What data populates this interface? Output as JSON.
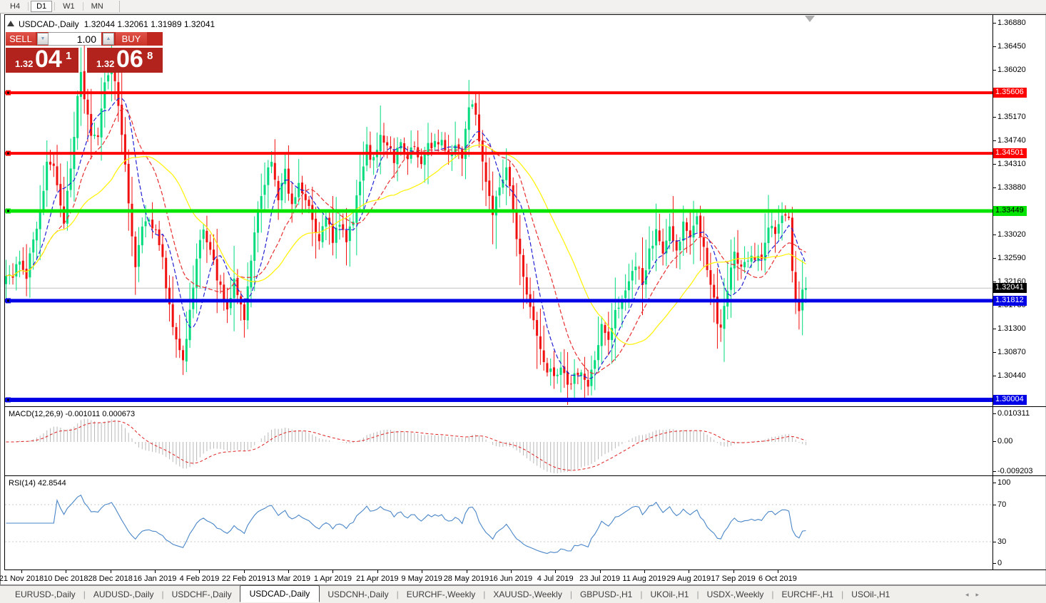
{
  "toolbar": {
    "timeframes": [
      {
        "label": "H4",
        "active": false
      },
      {
        "label": "D1",
        "active": true
      },
      {
        "label": "W1",
        "active": false
      },
      {
        "label": "MN",
        "active": false
      }
    ]
  },
  "chart": {
    "collapse_icon": "▲",
    "title": {
      "symbol": "USDCAD-,Daily",
      "quotes": "1.32044 1.32061 1.31989 1.32041"
    },
    "trade_panel": {
      "sell_label": "SELL",
      "buy_label": "BUY",
      "volume": "1.00",
      "spinner_down_icon": "▼",
      "spinner_up_icon": "▲",
      "sell_price": {
        "base": "1.32",
        "big": "04",
        "sup": "1"
      },
      "buy_price": {
        "base": "1.32",
        "big": "06",
        "sup": "8"
      }
    }
  },
  "indicators": {
    "macd": {
      "name": "MACD(12,26,9)",
      "v1": "-0.001011",
      "v2": "0.000673"
    },
    "rsi": {
      "text": "RSI(14) 42.8544"
    }
  },
  "tabs": {
    "items": [
      {
        "label": "EURUSD-,Daily",
        "active": false
      },
      {
        "label": "AUDUSD-,Daily",
        "active": false
      },
      {
        "label": "USDCHF-,Daily",
        "active": false
      },
      {
        "label": "USDCAD-,Daily",
        "active": true
      },
      {
        "label": "USDCNH-,Daily",
        "active": false
      },
      {
        "label": "EURCHF-,Weekly",
        "active": false
      },
      {
        "label": "XAUUSD-,Weekly",
        "active": false
      },
      {
        "label": "GBPUSD-,H1",
        "active": false
      },
      {
        "label": "UKOil-,H1",
        "active": false
      },
      {
        "label": "USDX-,Weekly",
        "active": false
      },
      {
        "label": "EURCHF-,H1",
        "active": false
      },
      {
        "label": "USOil-,H1",
        "active": false
      }
    ],
    "nav_left": "◂",
    "nav_right": "▸"
  },
  "chart_data": {
    "type": "candlestick",
    "symbol": "USDCAD-",
    "timeframe": "Daily",
    "ohlc_last": {
      "open": 1.32044,
      "high": 1.32061,
      "low": 1.31989,
      "close": 1.32041
    },
    "current_price": 1.32041,
    "candles_count": 236,
    "candle_colors": {
      "bull": "#00DC7D",
      "bear": "#F01010"
    },
    "y_tick_labels": [
      "1.36880",
      "1.36450",
      "1.36020",
      "1.35170",
      "1.34740",
      "1.34310",
      "1.33880",
      "1.33020",
      "1.32590",
      "1.32160",
      "1.31730",
      "1.31300",
      "1.30870",
      "1.30440"
    ],
    "y_badges": [
      {
        "label": "1.35606",
        "price": 1.35606,
        "bg": "#FF0000",
        "fg": "#FFFFFF"
      },
      {
        "label": "1.34501",
        "price": 1.34501,
        "bg": "#FF0000",
        "fg": "#FFFFFF"
      },
      {
        "label": "1.33449",
        "price": 1.33449,
        "bg": "#00E400",
        "fg": "#000000"
      },
      {
        "label": "1.32041",
        "price": 1.32041,
        "bg": "#000000",
        "fg": "#FFFFFF"
      },
      {
        "label": "1.31812",
        "price": 1.31812,
        "bg": "#0000E6",
        "fg": "#FFFFFF"
      },
      {
        "label": "1.30004",
        "price": 1.30004,
        "bg": "#0000E6",
        "fg": "#FFFFFF"
      }
    ],
    "hlines": [
      {
        "price": 1.35606,
        "color": "#FF0000",
        "width": 4
      },
      {
        "price": 1.34501,
        "color": "#FF0000",
        "width": 4
      },
      {
        "price": 1.33449,
        "color": "#00E400",
        "width": 5
      },
      {
        "price": 1.31812,
        "color": "#0000E6",
        "width": 5
      },
      {
        "price": 1.30004,
        "color": "#0000E6",
        "width": 6
      }
    ],
    "price_line": {
      "price": 1.32041,
      "color": "#C0C0C0"
    },
    "moving_averages": [
      {
        "period": 8,
        "color": "#2222D6",
        "style": "dashed"
      },
      {
        "period": 16,
        "color": "#E83030",
        "style": "dashed"
      },
      {
        "period": 32,
        "color": "#FFF200",
        "style": "solid"
      }
    ],
    "x_tick_labels": [
      "21 Nov 2018",
      "10 Dec 2018",
      "28 Dec 2018",
      "16 Jan 2019",
      "4 Feb 2019",
      "22 Feb 2019",
      "13 Mar 2019",
      "1 Apr 2019",
      "21 Apr 2019",
      "9 May 2019",
      "28 May 2019",
      "16 Jun 2019",
      "4 Jul 2019",
      "23 Jul 2019",
      "11 Aug 2019",
      "29 Aug 2019",
      "17 Sep 2019",
      "6 Oct 2019"
    ],
    "macd": {
      "fast": 12,
      "slow": 26,
      "signal": 9,
      "value_main": "-0.001011",
      "value_signal": "0.000673",
      "y_axis": [
        "0.010311",
        "0.00",
        "-0.009203"
      ],
      "histogram_color": "#B8B8B8",
      "signal_color": "#E02020"
    },
    "rsi": {
      "period": 14,
      "value": 42.8544,
      "levels": [
        70,
        30
      ],
      "y_axis": [
        "100",
        "70",
        "30",
        "0"
      ],
      "color": "#4A86C8"
    },
    "close_keypoints": [
      [
        0,
        1.3235
      ],
      [
        2,
        1.3215
      ],
      [
        4,
        1.3262
      ],
      [
        6,
        1.3228
      ],
      [
        8,
        1.3295
      ],
      [
        10,
        1.3345
      ],
      [
        12,
        1.3425
      ],
      [
        14,
        1.3432
      ],
      [
        16,
        1.3355
      ],
      [
        17,
        1.333
      ],
      [
        19,
        1.3415
      ],
      [
        21,
        1.3545
      ],
      [
        22,
        1.359
      ],
      [
        24,
        1.3518
      ],
      [
        25,
        1.3488
      ],
      [
        27,
        1.3478
      ],
      [
        29,
        1.357
      ],
      [
        31,
        1.3622
      ],
      [
        33,
        1.354
      ],
      [
        35,
        1.342
      ],
      [
        37,
        1.33
      ],
      [
        38,
        1.3252
      ],
      [
        40,
        1.3308
      ],
      [
        42,
        1.3325
      ],
      [
        44,
        1.3318
      ],
      [
        46,
        1.3255
      ],
      [
        48,
        1.317
      ],
      [
        50,
        1.311
      ],
      [
        52,
        1.3072
      ],
      [
        54,
        1.316
      ],
      [
        56,
        1.3258
      ],
      [
        58,
        1.3312
      ],
      [
        60,
        1.3278
      ],
      [
        62,
        1.3225
      ],
      [
        64,
        1.3178
      ],
      [
        65,
        1.3162
      ],
      [
        67,
        1.3212
      ],
      [
        69,
        1.3168
      ],
      [
        70,
        1.3152
      ],
      [
        72,
        1.3252
      ],
      [
        74,
        1.334
      ],
      [
        76,
        1.3402
      ],
      [
        78,
        1.344
      ],
      [
        80,
        1.3372
      ],
      [
        82,
        1.3412
      ],
      [
        84,
        1.3348
      ],
      [
        86,
        1.3402
      ],
      [
        88,
        1.3362
      ],
      [
        90,
        1.3328
      ],
      [
        92,
        1.3285
      ],
      [
        94,
        1.3338
      ],
      [
        96,
        1.3288
      ],
      [
        98,
        1.3322
      ],
      [
        100,
        1.3285
      ],
      [
        102,
        1.3335
      ],
      [
        104,
        1.3395
      ],
      [
        106,
        1.3458
      ],
      [
        108,
        1.3435
      ],
      [
        110,
        1.3488
      ],
      [
        112,
        1.3468
      ],
      [
        114,
        1.3438
      ],
      [
        116,
        1.3472
      ],
      [
        118,
        1.3442
      ],
      [
        120,
        1.3462
      ],
      [
        122,
        1.3428
      ],
      [
        124,
        1.3468
      ],
      [
        126,
        1.3465
      ],
      [
        128,
        1.3472
      ],
      [
        130,
        1.3438
      ],
      [
        132,
        1.3468
      ],
      [
        134,
        1.3448
      ],
      [
        136,
        1.3532
      ],
      [
        137,
        1.3548
      ],
      [
        139,
        1.3478
      ],
      [
        141,
        1.3402
      ],
      [
        143,
        1.3332
      ],
      [
        145,
        1.3392
      ],
      [
        147,
        1.3428
      ],
      [
        149,
        1.3345
      ],
      [
        151,
        1.3262
      ],
      [
        153,
        1.3198
      ],
      [
        155,
        1.3142
      ],
      [
        157,
        1.3088
      ],
      [
        159,
        1.3058
      ],
      [
        161,
        1.3038
      ],
      [
        163,
        1.3068
      ],
      [
        165,
        1.3035
      ],
      [
        167,
        1.3042
      ],
      [
        169,
        1.3048
      ],
      [
        171,
        1.3022
      ],
      [
        173,
        1.3078
      ],
      [
        175,
        1.3135
      ],
      [
        177,
        1.3102
      ],
      [
        179,
        1.3158
      ],
      [
        181,
        1.3188
      ],
      [
        183,
        1.3222
      ],
      [
        185,
        1.3252
      ],
      [
        187,
        1.3212
      ],
      [
        189,
        1.3268
      ],
      [
        191,
        1.3312
      ],
      [
        193,
        1.3262
      ],
      [
        195,
        1.3315
      ],
      [
        197,
        1.3272
      ],
      [
        199,
        1.3322
      ],
      [
        201,
        1.3288
      ],
      [
        203,
        1.3332
      ],
      [
        205,
        1.3282
      ],
      [
        207,
        1.3212
      ],
      [
        209,
        1.3148
      ],
      [
        210,
        1.3135
      ],
      [
        212,
        1.3208
      ],
      [
        214,
        1.3262
      ],
      [
        216,
        1.3252
      ],
      [
        218,
        1.3258
      ],
      [
        220,
        1.3255
      ],
      [
        222,
        1.3262
      ],
      [
        224,
        1.3308
      ],
      [
        226,
        1.3308
      ],
      [
        228,
        1.3338
      ],
      [
        230,
        1.3332
      ],
      [
        231,
        1.3242
      ],
      [
        232,
        1.3178
      ],
      [
        233,
        1.3162
      ],
      [
        234,
        1.3192
      ],
      [
        235,
        1.32041
      ]
    ]
  }
}
